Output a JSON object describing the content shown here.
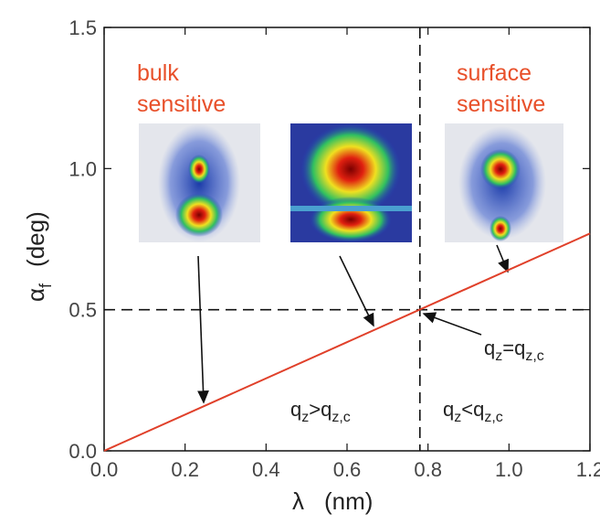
{
  "chart_data": {
    "type": "line",
    "x": [
      0,
      1.2
    ],
    "series": [
      {
        "color": "#e0402a",
        "values": [
          0,
          0.77
        ]
      }
    ],
    "xlim": [
      0,
      1.2
    ],
    "ylim": [
      0,
      1.5
    ],
    "xticks": [
      {
        "value": 0,
        "label": "0.0"
      },
      0.2,
      0.4,
      0.6,
      0.8,
      {
        "value": 1,
        "label": "1.0"
      },
      1.2
    ],
    "yticks": [
      {
        "value": 0,
        "label": "0.0"
      },
      0.5,
      {
        "value": 1,
        "label": "1.0"
      },
      1.5
    ],
    "xlabel": [
      "λ",
      "(nm)"
    ],
    "ylabel": [
      "α",
      "f",
      "(deg)"
    ],
    "hlines": [
      0.5
    ],
    "vlines": [
      0.78
    ],
    "labels": [
      [
        "bulk",
        "sensitive"
      ],
      [
        "surface",
        "sensitive"
      ]
    ],
    "label_color": "#e8502a",
    "annotations": [
      [
        "q",
        "z",
        ">q",
        "z,c"
      ],
      [
        "q",
        "z",
        "<q",
        "z,c"
      ],
      [
        "q",
        "z",
        "=q",
        "z,c"
      ]
    ]
  }
}
